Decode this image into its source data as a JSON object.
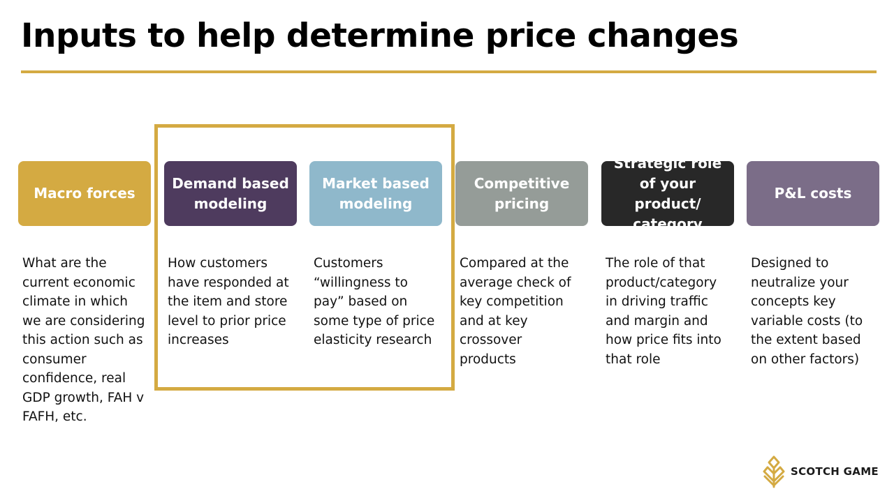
{
  "title": "Inputs to help determine price changes",
  "colors": {
    "accent": "#d4aa42",
    "text": "#111111"
  },
  "columns": [
    {
      "label": "Macro forces",
      "color": "#d4aa42",
      "description": "What are the\ncurrent economic\nclimate in which\nwe are considering\nthis action such as\nconsumer\nconfidence, real\nGDP growth, FAH v\nFAFH, etc."
    },
    {
      "label": "Demand based modeling",
      "color": "#4e3b5e",
      "description": "How customers\nhave responded at\nthe item and store\nlevel to prior price\nincreases"
    },
    {
      "label": "Market based modeling",
      "color": "#8fb8cb",
      "description": "Customers\n“willingness to\npay” based on\nsome type of price\nelasticity research"
    },
    {
      "label": "Competitive pricing",
      "color": "#959c98",
      "description": "Compared at the\naverage check of\nkey competition\nand at key\ncrossover\nproducts"
    },
    {
      "label": "Strategic role of your  product/ category",
      "color": "#282828",
      "description": "The role of that\nproduct/category\nin driving traffic\nand margin and\nhow price fits into\nthat role"
    },
    {
      "label": "P&L costs",
      "color": "#7b6d88",
      "description": "Designed to\nneutralize your\nconcepts key\nvariable costs (to\nthe extent based\non other factors)"
    }
  ],
  "highlight_group": [
    "Demand based modeling",
    "Market based modeling"
  ],
  "brand": {
    "name": "SCOTCH GAME",
    "icon": "wheat-leaf-logo-icon"
  }
}
